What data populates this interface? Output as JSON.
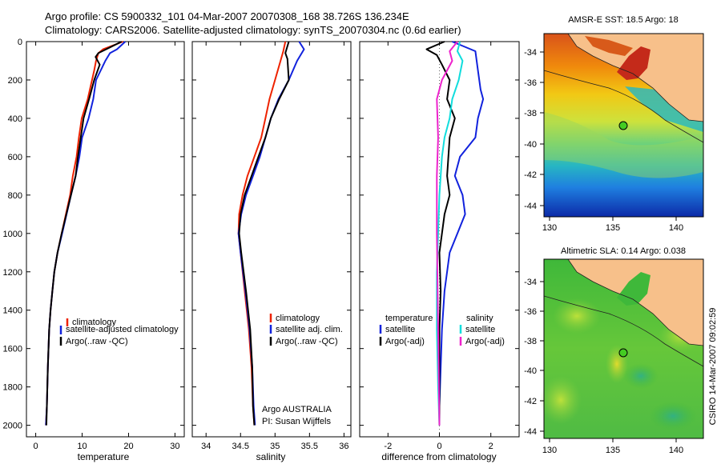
{
  "header": {
    "line1": "Argo profile: CS 5900332_101 04-Mar-2007 20070308_168 38.726S 136.234E",
    "line2": "Climatology: CARS2006. Satellite-adjusted climatology: synTS_20070304.nc (0.6d earlier)"
  },
  "chart_data": [
    {
      "type": "line",
      "name": "temperature-profile",
      "xlabel": "temperature",
      "xlim": [
        -2,
        32
      ],
      "ylim": [
        2060,
        0
      ],
      "xticks": [
        0,
        10,
        20,
        30
      ],
      "yticks": [
        0,
        200,
        400,
        600,
        800,
        1000,
        1200,
        1400,
        1600,
        1800,
        2000
      ],
      "legend": [
        "climatology",
        "satellite-adjusted climatology",
        "Argo(..raw -QC)"
      ],
      "series": [
        {
          "name": "climatology",
          "color": "#ee2200",
          "x": [
            18.8,
            14.5,
            13.5,
            13,
            12.6,
            11.2,
            9.9,
            9.3,
            8.8,
            8,
            7.4,
            5.6,
            4.7,
            4,
            3.6,
            3.2,
            2.9,
            2.6,
            2.4,
            2.2
          ],
          "y": [
            0,
            40,
            60,
            100,
            150,
            300,
            400,
            500,
            600,
            700,
            800,
            1000,
            1100,
            1200,
            1300,
            1400,
            1500,
            1700,
            1900,
            2000
          ]
        },
        {
          "name": "satellite-adjusted climatology",
          "color": "#1122dd",
          "x": [
            19.3,
            17.5,
            16,
            15,
            13,
            12.4,
            11.4,
            10,
            9.4,
            8.6,
            7.6,
            5.7,
            4.7,
            4,
            3.6,
            3.2,
            2.9,
            2.6,
            2.4,
            2.2
          ],
          "y": [
            0,
            40,
            60,
            100,
            200,
            300,
            400,
            500,
            600,
            700,
            800,
            1000,
            1100,
            1200,
            1300,
            1400,
            1500,
            1700,
            1900,
            2000
          ]
        },
        {
          "name": "Argo(..raw -QC)",
          "color": "#000000",
          "x": [
            18.5,
            16,
            13.5,
            12.9,
            13.8,
            12.6,
            11.5,
            10.3,
            9.7,
            9.1,
            8.6,
            7.6,
            5.6,
            4.7,
            4,
            3.6,
            3.2,
            2.9,
            2.6,
            2.4,
            2.3
          ],
          "y": [
            0,
            30,
            60,
            80,
            120,
            200,
            300,
            400,
            500,
            600,
            700,
            800,
            1000,
            1100,
            1200,
            1300,
            1400,
            1500,
            1700,
            1900,
            2000
          ]
        }
      ]
    },
    {
      "type": "line",
      "name": "salinity-profile",
      "xlabel": "salinity",
      "xlim": [
        33.8,
        36.1
      ],
      "ylim": [
        2060,
        0
      ],
      "xticks": [
        34,
        34.5,
        35,
        35.5,
        36
      ],
      "legend": [
        "climatology",
        "satellite adj. clim.",
        "Argo(..raw -QC)"
      ],
      "annotation": [
        "Argo AUSTRALIA",
        "PI: Susan Wijffels"
      ],
      "series": [
        {
          "name": "climatology",
          "color": "#ee2200",
          "x": [
            35.15,
            35.12,
            35.08,
            35.0,
            34.92,
            34.86,
            34.8,
            34.7,
            34.6,
            34.53,
            34.48,
            34.47,
            34.5,
            34.56,
            34.62,
            34.66,
            34.68,
            34.7
          ],
          "y": [
            0,
            50,
            100,
            200,
            300,
            400,
            500,
            600,
            700,
            800,
            900,
            1000,
            1100,
            1300,
            1500,
            1700,
            1900,
            2000
          ]
        },
        {
          "name": "satellite adj. clim.",
          "color": "#1122dd",
          "x": [
            35.35,
            35.42,
            35.32,
            35.2,
            35.05,
            34.94,
            34.86,
            34.78,
            34.68,
            34.58,
            34.51,
            34.47,
            34.5,
            34.57,
            34.63,
            34.67,
            34.69,
            34.71
          ],
          "y": [
            0,
            40,
            100,
            200,
            300,
            400,
            500,
            600,
            700,
            800,
            900,
            1000,
            1100,
            1300,
            1500,
            1700,
            1900,
            2000
          ]
        },
        {
          "name": "Argo(..raw -QC)",
          "color": "#000000",
          "x": [
            35.2,
            35.15,
            35.18,
            35.2,
            35.06,
            34.94,
            34.86,
            34.76,
            34.66,
            34.56,
            34.5,
            34.48,
            34.51,
            34.58,
            34.64,
            34.67,
            34.68,
            34.7
          ],
          "y": [
            0,
            60,
            90,
            200,
            300,
            400,
            500,
            600,
            700,
            800,
            900,
            1000,
            1100,
            1300,
            1500,
            1700,
            1900,
            2000
          ]
        }
      ]
    },
    {
      "type": "line",
      "name": "difference-profile",
      "xlabel": "difference from climatology",
      "xlim": [
        -3.1,
        3.1
      ],
      "ylim": [
        2060,
        0
      ],
      "xticks": [
        -2,
        0,
        2
      ],
      "legend_headers": [
        "temperature",
        "salinity"
      ],
      "legend": [
        "satellite",
        "Argo(-adj)",
        "satellite",
        "Argo(-adj)"
      ],
      "series": [
        {
          "name": "temperature satellite",
          "color": "#1122dd",
          "x": [
            0.5,
            1.4,
            1.5,
            1.6,
            1.7,
            1.5,
            1.4,
            0.8,
            0.6,
            0.9,
            1.0,
            0.7,
            0.4,
            0.2,
            0.1,
            0.05,
            0.0,
            0.0
          ],
          "y": [
            0,
            50,
            150,
            250,
            300,
            400,
            500,
            600,
            700,
            800,
            900,
            1000,
            1100,
            1300,
            1500,
            1700,
            1900,
            2000
          ]
        },
        {
          "name": "temperature Argo(-adj)",
          "color": "#000000",
          "x": [
            0.2,
            -0.5,
            -0.1,
            0.1,
            0.4,
            0.3,
            0.6,
            0.4,
            0.3,
            0.4,
            0.2,
            0.1,
            0.0,
            0.05,
            0.0,
            0.0,
            0.0
          ],
          "y": [
            0,
            40,
            70,
            120,
            200,
            300,
            400,
            500,
            700,
            800,
            900,
            1000,
            1100,
            1300,
            1500,
            1700,
            2000
          ]
        },
        {
          "name": "salinity satellite",
          "color": "#11dddd",
          "x": [
            0.8,
            0.7,
            0.9,
            0.75,
            0.5,
            0.4,
            0.2,
            0.1,
            0.0,
            -0.05,
            -0.1,
            -0.1,
            -0.05,
            0.0
          ],
          "y": [
            0,
            50,
            100,
            200,
            300,
            400,
            500,
            600,
            800,
            1000,
            1200,
            1500,
            1800,
            2000
          ]
        },
        {
          "name": "salinity Argo(-adj)",
          "color": "#ee22cc",
          "x": [
            0.7,
            0.4,
            0.5,
            0.1,
            -0.1,
            -0.05,
            -0.1,
            -0.1,
            -0.05,
            0.0
          ],
          "y": [
            0,
            50,
            100,
            200,
            300,
            500,
            700,
            1000,
            1500,
            2000
          ]
        }
      ]
    }
  ],
  "maps": {
    "sst": {
      "title": "AMSR-E SST: 18.5 Argo: 18",
      "xticks": [
        "130",
        "135",
        "140"
      ],
      "yticks": [
        "-34",
        "-36",
        "-38",
        "-40",
        "-42",
        "-44"
      ]
    },
    "sla": {
      "title": "Altimetric SLA: 0.14 Argo: 0.038",
      "xticks": [
        "130",
        "135",
        "140"
      ],
      "yticks": [
        "-34",
        "-36",
        "-38",
        "-40",
        "-42",
        "-44"
      ]
    }
  },
  "footer": {
    "stamp": "CSIRO 14-Mar-2007 09:02:59"
  },
  "colors": {
    "land": "#f7c08a",
    "profile_marker": "#44cc22"
  }
}
